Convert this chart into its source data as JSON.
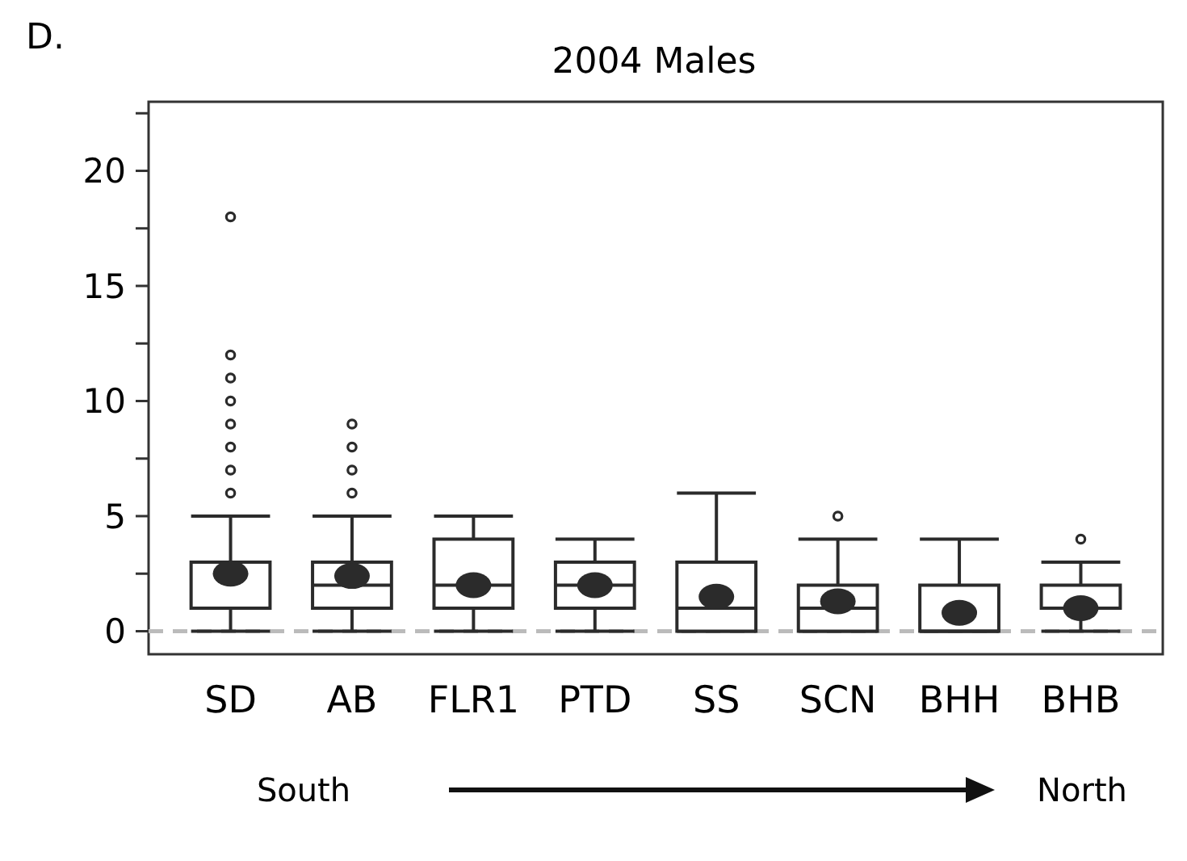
{
  "chart_data": {
    "type": "box",
    "title": "2004 Males",
    "categories": [
      "SD",
      "AB",
      "FLR1",
      "PTD",
      "SS",
      "SCN",
      "BHH",
      "BHB"
    ],
    "boxes": [
      {
        "low": 0,
        "q1": 1,
        "median": 3,
        "q3": 3,
        "high": 5,
        "mean": 2.5,
        "outliers": [
          6,
          7,
          8,
          9,
          10,
          11,
          12,
          18
        ]
      },
      {
        "low": 0,
        "q1": 1,
        "median": 2,
        "q3": 3,
        "high": 5,
        "mean": 2.4,
        "outliers": [
          6,
          7,
          8,
          9
        ]
      },
      {
        "low": 0,
        "q1": 1,
        "median": 2,
        "q3": 4,
        "high": 5,
        "mean": 2
      },
      {
        "low": 0,
        "q1": 1,
        "median": 2,
        "q3": 3,
        "high": 4,
        "mean": 2
      },
      {
        "low": 0,
        "q1": 0,
        "median": 1,
        "q3": 3,
        "high": 6,
        "mean": 1.5
      },
      {
        "low": 0,
        "q1": 0,
        "median": 1,
        "q3": 2,
        "high": 4,
        "mean": 1.3,
        "outliers": [
          5
        ]
      },
      {
        "low": 0,
        "q1": 0,
        "median": 0,
        "q3": 2,
        "high": 4,
        "mean": 0.8
      },
      {
        "low": 0,
        "q1": 1,
        "median": 1,
        "q3": 2,
        "high": 3,
        "mean": 1,
        "outliers": [
          4
        ]
      }
    ],
    "ylim": [
      -1,
      23
    ],
    "yticks": [
      0,
      {
        "value": 2.5,
        "label": null
      },
      5,
      {
        "value": 7.5,
        "label": null
      },
      10,
      {
        "value": 12.5,
        "label": null
      },
      15,
      {
        "value": 17.5,
        "label": null
      },
      20,
      {
        "value": 22.5,
        "label": null
      }
    ],
    "ref_lines": [
      {
        "axis": "y",
        "value": 0,
        "color": "#bbbbbb",
        "line_style": "dashed"
      }
    ],
    "annotations": [
      "D.",
      "South",
      "North"
    ],
    "color": "#2b2b2b"
  }
}
